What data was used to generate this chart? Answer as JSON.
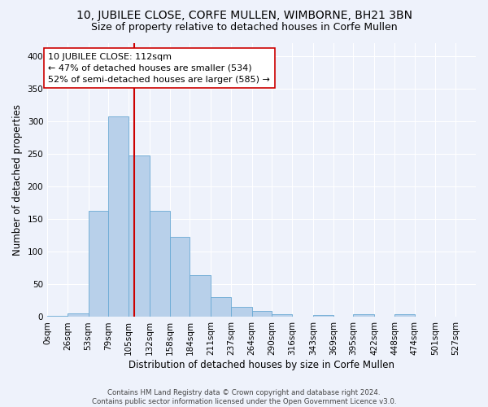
{
  "title": "10, JUBILEE CLOSE, CORFE MULLEN, WIMBORNE, BH21 3BN",
  "subtitle": "Size of property relative to detached houses in Corfe Mullen",
  "xlabel": "Distribution of detached houses by size in Corfe Mullen",
  "ylabel": "Number of detached properties",
  "footer_line1": "Contains HM Land Registry data © Crown copyright and database right 2024.",
  "footer_line2": "Contains public sector information licensed under the Open Government Licence v3.0.",
  "bin_labels": [
    "0sqm",
    "26sqm",
    "53sqm",
    "79sqm",
    "105sqm",
    "132sqm",
    "158sqm",
    "184sqm",
    "211sqm",
    "237sqm",
    "264sqm",
    "290sqm",
    "316sqm",
    "343sqm",
    "369sqm",
    "395sqm",
    "422sqm",
    "448sqm",
    "474sqm",
    "501sqm",
    "527sqm"
  ],
  "bar_heights": [
    2,
    5,
    163,
    307,
    247,
    163,
    123,
    64,
    31,
    16,
    9,
    4,
    0,
    3,
    0,
    4,
    0,
    4,
    0,
    0,
    0
  ],
  "bar_color": "#b8d0ea",
  "bar_edge_color": "#6aaad4",
  "bin_edges": [
    0,
    26,
    53,
    79,
    105,
    132,
    158,
    184,
    211,
    237,
    264,
    290,
    316,
    343,
    369,
    395,
    422,
    448,
    474,
    501,
    527,
    553
  ],
  "property_size": 112,
  "annotation_line1": "10 JUBILEE CLOSE: 112sqm",
  "annotation_line2": "← 47% of detached houses are smaller (534)",
  "annotation_line3": "52% of semi-detached houses are larger (585) →",
  "vline_color": "#cc0000",
  "annotation_box_facecolor": "#ffffff",
  "annotation_box_edgecolor": "#cc0000",
  "ylim": [
    0,
    420
  ],
  "yticks": [
    0,
    50,
    100,
    150,
    200,
    250,
    300,
    350,
    400
  ],
  "background_color": "#eef2fb",
  "grid_color": "#ffffff",
  "title_fontsize": 10,
  "subtitle_fontsize": 9,
  "axis_label_fontsize": 8.5,
  "tick_fontsize": 7.5,
  "annotation_fontsize": 8
}
